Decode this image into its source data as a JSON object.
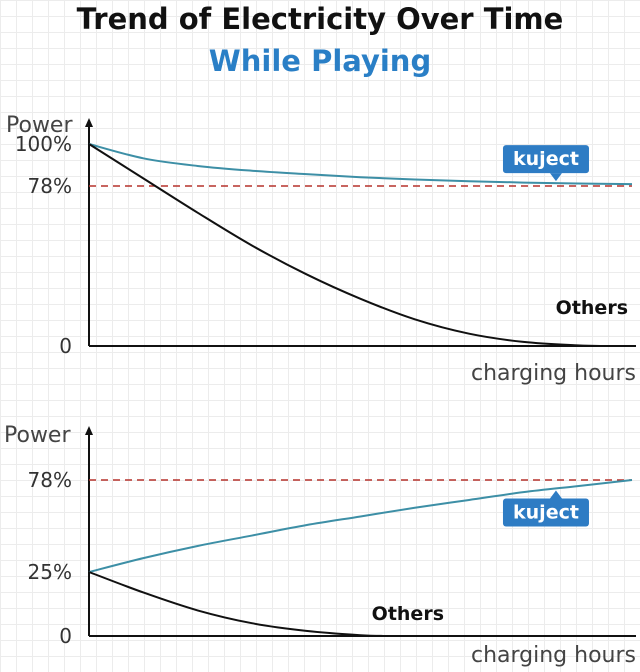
{
  "title": "Trend of Electricity Over Time",
  "subtitle": "While Playing",
  "colors": {
    "title": "#111111",
    "subtitle": "#2a7fc6",
    "kuject_line": "#3d8fa6",
    "others_line": "#111111",
    "reference_line": "#b5322b",
    "badge": "#2e7cc4"
  },
  "chart_data": [
    {
      "type": "line",
      "ylabel": "Power",
      "xlabel": "charging hours",
      "y_ticks": [
        {
          "label": "100%",
          "value": 100
        },
        {
          "label": "78%",
          "value": 78
        },
        {
          "label": "0",
          "value": 0
        }
      ],
      "ylim": [
        0,
        100
      ],
      "xlim": [
        0,
        1
      ],
      "reference_line": {
        "value": 78,
        "style": "dashed"
      },
      "series": [
        {
          "name": "kuject",
          "label_style": "badge",
          "x": [
            0,
            0.1,
            0.2,
            0.3,
            0.4,
            0.5,
            0.6,
            0.7,
            0.8,
            0.9,
            1.0
          ],
          "y": [
            100,
            92.5,
            88.5,
            86,
            84.2,
            82.6,
            81.4,
            80.5,
            79.8,
            79.3,
            79
          ]
        },
        {
          "name": "Others",
          "label_style": "text",
          "x": [
            0,
            0.1,
            0.2,
            0.3,
            0.4,
            0.5,
            0.6,
            0.7,
            0.8,
            0.9,
            0.95
          ],
          "y": [
            100,
            82,
            65,
            49,
            35,
            23,
            13,
            6,
            2,
            0.3,
            0
          ]
        }
      ]
    },
    {
      "type": "line",
      "ylabel": "Power",
      "xlabel": "charging hours",
      "y_ticks": [
        {
          "label": "78%",
          "value": 78
        },
        {
          "label": "25%",
          "value": 25
        },
        {
          "label": "0",
          "value": 0
        }
      ],
      "ylim": [
        0,
        100
      ],
      "xlim": [
        0,
        1
      ],
      "reference_line": {
        "value": 78,
        "style": "dashed"
      },
      "series": [
        {
          "name": "kuject",
          "label_style": "badge",
          "x": [
            0,
            0.1,
            0.2,
            0.3,
            0.4,
            0.5,
            0.6,
            0.7,
            0.8,
            0.9,
            1.0
          ],
          "y": [
            25,
            33,
            40,
            46,
            52,
            57,
            62,
            66.5,
            71,
            74.5,
            78
          ]
        },
        {
          "name": "Others",
          "label_style": "text",
          "x": [
            0,
            0.1,
            0.2,
            0.3,
            0.4,
            0.5,
            0.55
          ],
          "y": [
            25,
            17,
            10,
            5,
            2,
            0.3,
            0
          ]
        }
      ]
    }
  ]
}
